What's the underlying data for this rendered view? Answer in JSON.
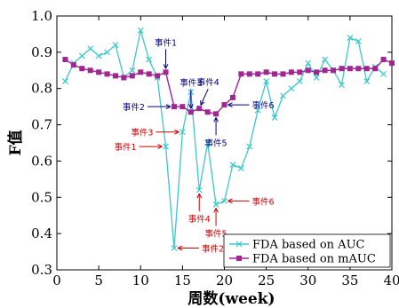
{
  "chart_data": {
    "type": "line",
    "xlabel": "周数(week)",
    "ylabel": "F值",
    "xlim": [
      0,
      40
    ],
    "ylim": [
      0.3,
      1.0
    ],
    "xticks": [
      0,
      5,
      10,
      15,
      20,
      25,
      30,
      35,
      40
    ],
    "yticks": [
      "0.3",
      "0.4",
      "0.5",
      "0.6",
      "0.7",
      "0.8",
      "0.9",
      "1.0"
    ],
    "legend_position": "bottom-right",
    "series": [
      {
        "name": "FDA based on AUC",
        "color": "#3cc8cc",
        "marker": "x",
        "x": [
          1,
          2,
          3,
          4,
          5,
          6,
          7,
          8,
          9,
          10,
          11,
          12,
          13,
          14,
          15,
          16,
          17,
          18,
          19,
          20,
          21,
          22,
          23,
          24,
          25,
          26,
          27,
          28,
          29,
          30,
          31,
          32,
          33,
          34,
          35,
          36,
          37,
          38,
          39,
          40
        ],
        "y": [
          0.82,
          0.87,
          0.89,
          0.91,
          0.89,
          0.9,
          0.92,
          0.83,
          0.85,
          0.96,
          0.88,
          0.83,
          0.64,
          0.36,
          0.68,
          0.79,
          0.52,
          0.65,
          0.48,
          0.49,
          0.59,
          0.58,
          0.64,
          0.74,
          0.82,
          0.72,
          0.78,
          0.8,
          0.82,
          0.87,
          0.83,
          0.88,
          0.85,
          0.81,
          0.94,
          0.93,
          0.82,
          0.86,
          0.84,
          null
        ]
      },
      {
        "name": "FDA based on mAUC",
        "color": "#a0278f",
        "marker": "square",
        "x": [
          1,
          2,
          3,
          4,
          5,
          6,
          7,
          8,
          9,
          10,
          11,
          12,
          13,
          14,
          15,
          16,
          17,
          18,
          19,
          20,
          21,
          22,
          23,
          24,
          25,
          26,
          27,
          28,
          29,
          30,
          31,
          32,
          33,
          34,
          35,
          36,
          37,
          38,
          39,
          40
        ],
        "y": [
          0.88,
          0.865,
          0.855,
          0.85,
          0.845,
          0.84,
          0.835,
          0.83,
          0.835,
          0.845,
          0.84,
          0.835,
          0.845,
          0.75,
          0.75,
          0.735,
          0.745,
          0.735,
          0.73,
          0.755,
          0.775,
          0.84,
          0.84,
          0.84,
          0.845,
          0.84,
          0.84,
          0.845,
          0.845,
          0.85,
          0.845,
          0.85,
          0.85,
          0.855,
          0.855,
          0.855,
          0.855,
          0.855,
          0.88,
          0.87
        ]
      }
    ],
    "annotations": [
      {
        "label": "事件1",
        "color": "#000080",
        "x": 13,
        "y": 0.845,
        "direction": "up"
      },
      {
        "label": "事件2",
        "color": "#000080",
        "x": 14,
        "y": 0.75,
        "direction": "left"
      },
      {
        "label": "事件3",
        "color": "#000080",
        "x": 16,
        "y": 0.735,
        "direction": "up"
      },
      {
        "label": "事件4",
        "color": "#000080",
        "x": 17,
        "y": 0.745,
        "direction": "up-right"
      },
      {
        "label": "事件5",
        "color": "#000080",
        "x": 19,
        "y": 0.73,
        "direction": "down"
      },
      {
        "label": "事件6",
        "color": "#000080",
        "x": 20,
        "y": 0.755,
        "direction": "right"
      },
      {
        "label": "事件1",
        "color": "#cc0000",
        "x": 13,
        "y": 0.64,
        "direction": "left"
      },
      {
        "label": "事件2",
        "color": "#cc0000",
        "x": 14,
        "y": 0.36,
        "direction": "right"
      },
      {
        "label": "事件3",
        "color": "#cc0000",
        "x": 15,
        "y": 0.68,
        "direction": "left"
      },
      {
        "label": "事件4",
        "color": "#cc0000",
        "x": 17,
        "y": 0.52,
        "direction": "down"
      },
      {
        "label": "事件5",
        "color": "#cc0000",
        "x": 19,
        "y": 0.48,
        "direction": "down"
      },
      {
        "label": "事件6",
        "color": "#cc0000",
        "x": 20,
        "y": 0.49,
        "direction": "right"
      }
    ]
  }
}
